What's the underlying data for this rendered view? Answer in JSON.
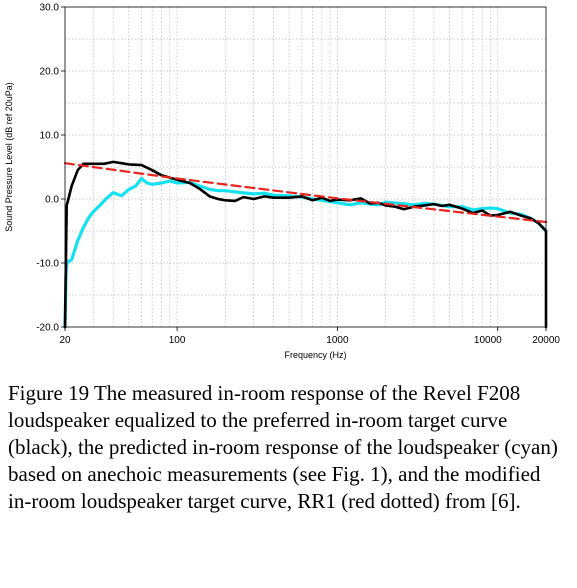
{
  "chart_data": {
    "type": "line",
    "xlabel": "Frequency (Hz)",
    "ylabel": "Sound Pressure Level (dB ref 20uPa)",
    "x_scale": "log",
    "xlim": [
      20,
      20000
    ],
    "ylim": [
      -20,
      30
    ],
    "x_ticks": [
      20,
      100,
      1000,
      10000,
      20000
    ],
    "x_tick_labels": [
      "20",
      "100",
      "1000",
      "10000",
      "20000"
    ],
    "y_ticks": [
      -20,
      -10,
      0,
      10,
      20,
      30
    ],
    "y_tick_labels": [
      "-20.0",
      "-10.0",
      "0.0",
      "10.0",
      "20.0",
      "30.0"
    ],
    "grid": true,
    "series": [
      {
        "color": "#000000",
        "style": "solid",
        "x": [
          20,
          20.5,
          21,
          22,
          24,
          26,
          30,
          35,
          40,
          45,
          50,
          60,
          70,
          80,
          100,
          120,
          140,
          160,
          180,
          200,
          230,
          260,
          300,
          350,
          400,
          500,
          600,
          700,
          800,
          900,
          1000,
          1200,
          1400,
          1600,
          1800,
          2000,
          2300,
          2600,
          3000,
          3500,
          4000,
          4500,
          5000,
          6000,
          7000,
          8000,
          9000,
          10000,
          12000,
          14000,
          16000,
          18000,
          20000,
          20000
        ],
        "y": [
          -20,
          -1,
          0,
          2,
          4.5,
          5.5,
          5.5,
          5.5,
          5.8,
          5.6,
          5.4,
          5.3,
          4.5,
          3.7,
          3.0,
          2.5,
          1.5,
          0.4,
          0,
          -0.2,
          -0.3,
          0.3,
          0,
          0.4,
          0.2,
          0.2,
          0.4,
          -0.2,
          0.2,
          -0.3,
          -0.1,
          -0.2,
          0.1,
          -0.7,
          -0.6,
          -1.0,
          -1.2,
          -1.6,
          -1.2,
          -1.0,
          -0.8,
          -1.1,
          -0.9,
          -1.5,
          -2.2,
          -1.8,
          -2.6,
          -2.5,
          -2.0,
          -2.6,
          -3.0,
          -3.8,
          -5.0,
          -20
        ]
      },
      {
        "color": "#14e1f0",
        "style": "solid",
        "x": [
          20,
          20.3,
          20.6,
          21,
          22,
          23,
          24,
          26,
          28,
          30,
          33,
          36,
          40,
          45,
          50,
          55,
          60,
          65,
          70,
          80,
          90,
          100,
          120,
          140,
          160,
          180,
          200,
          250,
          300,
          350,
          400,
          500,
          600,
          700,
          800,
          900,
          1000,
          1200,
          1400,
          1600,
          1800,
          2000,
          2500,
          3000,
          3500,
          4000,
          4500,
          5000,
          6000,
          7000,
          8000,
          9000,
          10000,
          12000,
          14000,
          16000,
          18000,
          20000
        ],
        "y": [
          -20,
          -12,
          -9.7,
          -9.8,
          -9.5,
          -8,
          -6.5,
          -4.5,
          -3.0,
          -2.0,
          -1.0,
          0,
          1.0,
          0.5,
          1.5,
          2.0,
          3.2,
          2.5,
          2.3,
          2.5,
          2.8,
          2.5,
          2.6,
          2.0,
          1.5,
          1.3,
          1.3,
          1.0,
          0.8,
          0.9,
          0.6,
          0.5,
          0.3,
          0,
          -0.2,
          -0.4,
          -0.6,
          -0.9,
          -0.6,
          -0.8,
          -0.9,
          -0.5,
          -0.7,
          -0.9,
          -0.7,
          -0.8,
          -1.0,
          -1.2,
          -1.2,
          -1.7,
          -1.5,
          -1.4,
          -1.5,
          -2.2,
          -2.4,
          -3.0,
          -3.8,
          -5.0
        ]
      },
      {
        "color": "#e8251e",
        "style": "dotted",
        "x": [
          20,
          100,
          1000,
          20000
        ],
        "y": [
          5.6,
          3.2,
          0.1,
          -3.6
        ]
      }
    ]
  },
  "caption": "Figure 19 The measured in-room response of the Revel F208 loudspeaker equalized to the preferred in-room target curve (black), the predicted in-room response of the loudspeaker (cyan) based on anechoic measurements (see Fig. 1), and the modified in-room loudspeaker target curve, RR1 (red dotted) from [6]."
}
